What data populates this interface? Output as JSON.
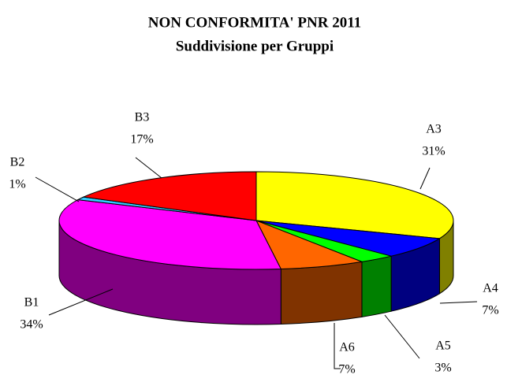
{
  "chart_data": {
    "type": "pie3d",
    "title": "NON CONFORMITA' PNR 2011",
    "subtitle": "Suddivisione per Gruppi",
    "categories": [
      "A3",
      "A4",
      "A5",
      "A6",
      "B1",
      "B2",
      "B3"
    ],
    "values": [
      31,
      7,
      3,
      7,
      34,
      1,
      17
    ],
    "value_labels": [
      "31%",
      "7%",
      "3%",
      "7%",
      "34%",
      "1%",
      "17%"
    ],
    "colors": [
      "#ffff00",
      "#0000ff",
      "#00ff00",
      "#ff6600",
      "#ff00ff",
      "#33ccff",
      "#ff0000"
    ],
    "side_colors": [
      "#808000",
      "#000080",
      "#008000",
      "#803300",
      "#800080",
      "#1a6680",
      "#800000"
    ]
  }
}
